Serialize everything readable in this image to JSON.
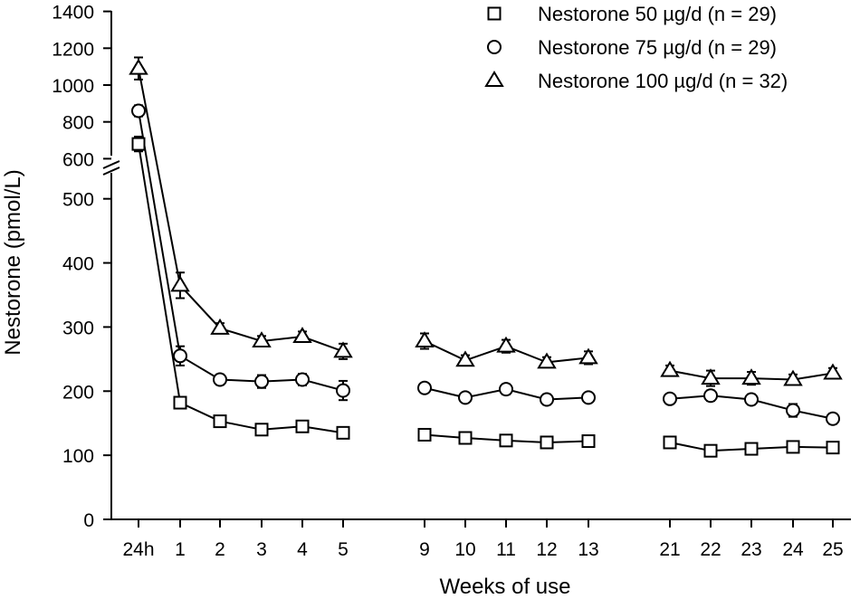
{
  "chart_data": {
    "type": "line",
    "title": "",
    "xlabel": "Weeks of use",
    "ylabel": "Nestorone (pmol/L)",
    "ylim": [
      0,
      1400
    ],
    "axis_break": {
      "lower_range": [
        0,
        500
      ],
      "upper_range": [
        600,
        1400
      ]
    },
    "lower_yticks": [
      0,
      100,
      200,
      300,
      400,
      500
    ],
    "upper_yticks": [
      600,
      800,
      1000,
      1200,
      1400
    ],
    "ytick_labels": [
      "0",
      "100",
      "200",
      "300",
      "400",
      "500",
      "600",
      "800",
      "1000",
      "1200",
      "1400"
    ],
    "categories": [
      "24h",
      "1",
      "2",
      "3",
      "4",
      "5",
      "9",
      "10",
      "11",
      "12",
      "13",
      "21",
      "22",
      "23",
      "24",
      "25"
    ],
    "segments": [
      [
        0,
        5
      ],
      [
        6,
        10
      ],
      [
        11,
        15
      ]
    ],
    "legend_position": "top-right",
    "series": [
      {
        "name": "Nestorone 50 µg/d  (n = 29)",
        "marker": "square",
        "values": [
          680,
          182,
          153,
          140,
          145,
          135,
          132,
          127,
          123,
          120,
          122,
          120,
          107,
          110,
          113,
          112
        ],
        "errors": [
          40,
          6,
          5,
          4,
          5,
          5,
          5,
          4,
          4,
          4,
          4,
          5,
          4,
          4,
          4,
          4
        ]
      },
      {
        "name": "Nestorone 75 µg/d (n = 29)",
        "marker": "circle",
        "values": [
          860,
          255,
          218,
          215,
          218,
          201,
          205,
          190,
          203,
          187,
          190,
          188,
          193,
          187,
          170,
          157
        ],
        "errors": [
          30,
          15,
          8,
          10,
          9,
          15,
          6,
          6,
          8,
          8,
          6,
          6,
          8,
          8,
          10,
          8
        ]
      },
      {
        "name": "Nestorone 100 µg/d  (n = 32)",
        "marker": "triangle",
        "values": [
          1090,
          365,
          298,
          278,
          285,
          262,
          278,
          248,
          270,
          245,
          252,
          232,
          220,
          220,
          218,
          228
        ],
        "errors": [
          60,
          20,
          8,
          8,
          8,
          12,
          12,
          8,
          10,
          8,
          10,
          8,
          12,
          10,
          8,
          8
        ]
      }
    ]
  }
}
